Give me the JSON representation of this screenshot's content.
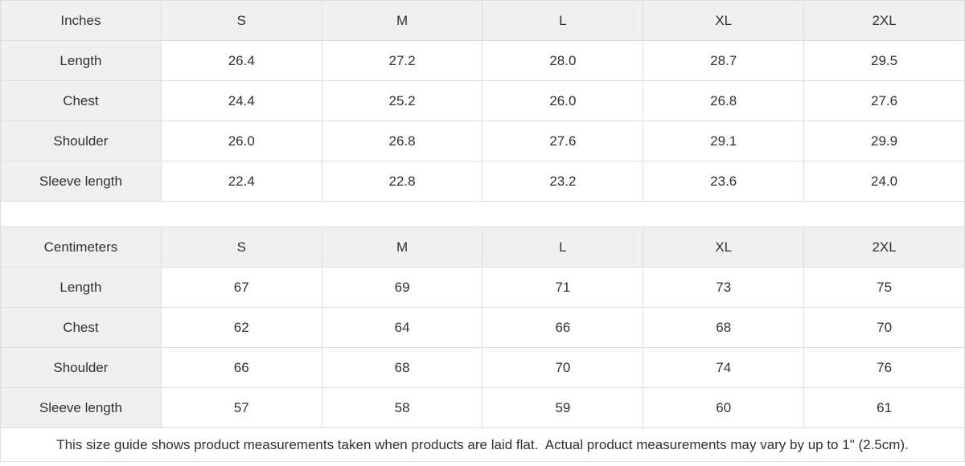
{
  "colors": {
    "header_bg": "#f0f0f0",
    "border": "#dddddd",
    "text": "#303030"
  },
  "tables": [
    {
      "unit_label": "Inches",
      "sizes": [
        "S",
        "M",
        "L",
        "XL",
        "2XL"
      ],
      "rows": [
        {
          "label": "Length",
          "values": [
            "26.4",
            "27.2",
            "28.0",
            "28.7",
            "29.5"
          ]
        },
        {
          "label": "Chest",
          "values": [
            "24.4",
            "25.2",
            "26.0",
            "26.8",
            "27.6"
          ]
        },
        {
          "label": "Shoulder",
          "values": [
            "26.0",
            "26.8",
            "27.6",
            "29.1",
            "29.9"
          ]
        },
        {
          "label": "Sleeve length",
          "values": [
            "22.4",
            "22.8",
            "23.2",
            "23.6",
            "24.0"
          ]
        }
      ]
    },
    {
      "unit_label": "Centimeters",
      "sizes": [
        "S",
        "M",
        "L",
        "XL",
        "2XL"
      ],
      "rows": [
        {
          "label": "Length",
          "values": [
            "67",
            "69",
            "71",
            "73",
            "75"
          ]
        },
        {
          "label": "Chest",
          "values": [
            "62",
            "64",
            "66",
            "68",
            "70"
          ]
        },
        {
          "label": "Shoulder",
          "values": [
            "66",
            "68",
            "70",
            "74",
            "76"
          ]
        },
        {
          "label": "Sleeve length",
          "values": [
            "57",
            "58",
            "59",
            "60",
            "61"
          ]
        }
      ]
    }
  ],
  "footnote": "This size guide shows product measurements taken when products are laid flat.  Actual product measurements may vary by up to 1\" (2.5cm)."
}
